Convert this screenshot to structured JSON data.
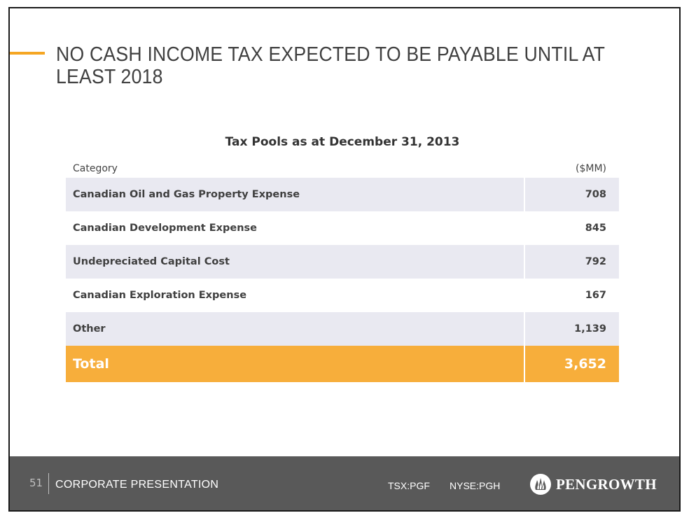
{
  "title": "NO CASH INCOME TAX EXPECTED TO BE PAYABLE UNTIL AT LEAST 2018",
  "table": {
    "caption": "Tax Pools as at December 31, 2013",
    "headers": {
      "category": "Category",
      "amount": "($MM)"
    },
    "rows": [
      {
        "category": "Canadian Oil and Gas Property Expense",
        "amount": "708"
      },
      {
        "category": "Canadian Development Expense",
        "amount": "845"
      },
      {
        "category": "Undepreciated Capital Cost",
        "amount": "792"
      },
      {
        "category": "Canadian Exploration Expense",
        "amount": "167"
      },
      {
        "category": "Other",
        "amount": "1,139"
      }
    ],
    "total": {
      "category": "Total",
      "amount": "3,652"
    }
  },
  "footer": {
    "page_number": "51",
    "presentation_label": "CORPORATE PRESENTATION",
    "ticker_tsx": "TSX:PGF",
    "ticker_nyse": "NYSE:PGH",
    "logo_text": "PENGROWTH",
    "logo_icon": "flame-icon"
  },
  "colors": {
    "accent": "#f5a623",
    "total_row": "#f7ae3b",
    "shaded_row": "#e9e9f1",
    "footer_bg": "#595959"
  }
}
